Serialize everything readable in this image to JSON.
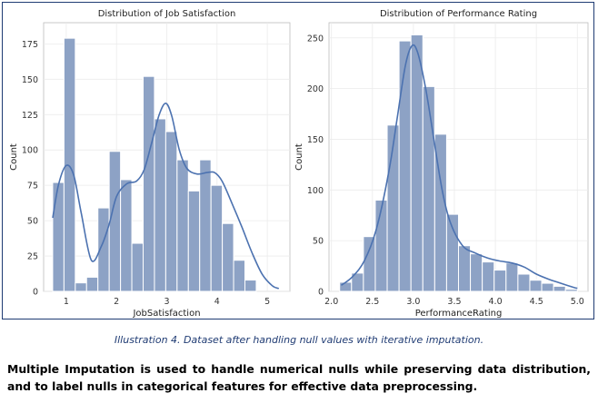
{
  "chart_data": [
    {
      "type": "bar",
      "chart_kind": "histogram with density curve",
      "title": "Distribution of Job Satisfaction",
      "xlabel": "JobSatisfaction",
      "ylabel": "Count",
      "xlim": [
        0.55,
        5.45
      ],
      "ylim": [
        0,
        190
      ],
      "xticks": [
        1,
        2,
        3,
        4,
        5
      ],
      "yticks": [
        0,
        25,
        50,
        75,
        100,
        125,
        150,
        175
      ],
      "grid": true,
      "bin_edges": [
        0.73,
        0.955,
        1.18,
        1.405,
        1.63,
        1.855,
        2.08,
        2.305,
        2.53,
        2.755,
        2.98,
        3.205,
        3.43,
        3.655,
        3.88,
        4.105,
        4.33,
        4.555,
        4.78,
        5.005,
        5.23
      ],
      "values": [
        77,
        179,
        6,
        10,
        59,
        99,
        79,
        34,
        152,
        122,
        113,
        93,
        71,
        93,
        75,
        48,
        22,
        8,
        0,
        0
      ],
      "kde": {
        "x": [
          0.73,
          0.85,
          1.0,
          1.15,
          1.3,
          1.5,
          1.7,
          1.85,
          2.0,
          2.2,
          2.4,
          2.55,
          2.7,
          2.85,
          2.98,
          3.1,
          3.25,
          3.4,
          3.6,
          3.8,
          3.95,
          4.1,
          4.3,
          4.5,
          4.7,
          4.9,
          5.1,
          5.23
        ],
        "y": [
          52,
          76,
          89,
          82,
          55,
          22,
          32,
          47,
          67,
          76,
          78,
          86,
          105,
          125,
          133,
          124,
          100,
          87,
          83,
          84,
          84,
          78,
          62,
          45,
          27,
          12,
          4,
          2
        ]
      },
      "bar_color": "#8da2c5",
      "line_color": "#4c72b0"
    },
    {
      "type": "bar",
      "chart_kind": "histogram with density curve",
      "title": "Distribution of Performance Rating",
      "xlabel": "PerformanceRating",
      "ylabel": "Count",
      "xlim": [
        1.97,
        5.13
      ],
      "ylim": [
        0,
        265
      ],
      "xticks": [
        2.0,
        2.5,
        3.0,
        3.5,
        4.0,
        4.5,
        5.0
      ],
      "xtick_labels": [
        "2.0",
        "2.5",
        "3.0",
        "3.5",
        "4.0",
        "4.5",
        "5.0"
      ],
      "yticks": [
        0,
        50,
        100,
        150,
        200,
        250
      ],
      "grid": true,
      "bin_edges": [
        2.1,
        2.245,
        2.39,
        2.535,
        2.68,
        2.825,
        2.97,
        3.115,
        3.26,
        3.405,
        3.55,
        3.695,
        3.84,
        3.985,
        4.13,
        4.275,
        4.42,
        4.565,
        4.71,
        4.855,
        5.0
      ],
      "values": [
        9,
        18,
        54,
        90,
        164,
        247,
        253,
        202,
        155,
        76,
        45,
        37,
        29,
        21,
        28,
        17,
        11,
        8,
        5,
        2
      ],
      "kde": {
        "x": [
          2.12,
          2.25,
          2.4,
          2.55,
          2.7,
          2.8,
          2.9,
          2.98,
          3.05,
          3.15,
          3.25,
          3.35,
          3.45,
          3.6,
          3.75,
          3.9,
          4.05,
          4.2,
          4.35,
          4.5,
          4.65,
          4.8,
          4.95,
          5.0
        ],
        "y": [
          6,
          14,
          30,
          62,
          118,
          170,
          222,
          242,
          236,
          200,
          150,
          100,
          68,
          45,
          38,
          33,
          30,
          28,
          24,
          17,
          12,
          8,
          4,
          3
        ]
      },
      "bar_color": "#8da2c5",
      "line_color": "#4c72b0"
    }
  ],
  "caption": "Illustration 4. Dataset after handling null values with iterative imputation.",
  "description": "Multiple Imputation is used to handle numerical nulls while preserving data distribution, and to label nulls in categorical features for effective data preprocessing."
}
